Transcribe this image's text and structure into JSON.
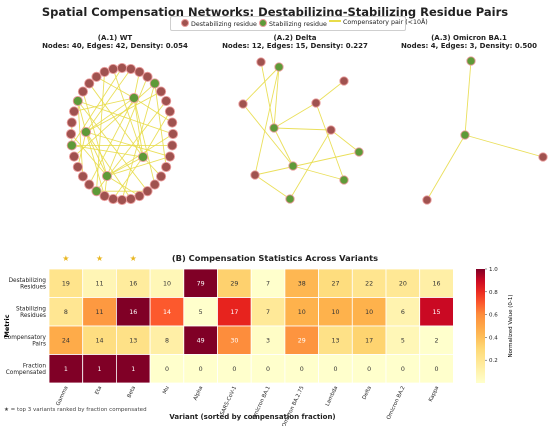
{
  "title": "Spatial Compensation Networks: Destabilizing-Stabilizing Residue Pairs",
  "legend": {
    "destabilizing": "Destabilizing residue",
    "stabilizing": "Stabilizing residue",
    "pair": "Compensatory pair (<10Å)"
  },
  "colors": {
    "destabilizing": "#a0524f",
    "stabilizing": "#5e9a38",
    "edge": "#e8dc4a",
    "node_outline": "#e89a9a"
  },
  "networks": [
    {
      "title": "(A.1) WT",
      "stats": "Nodes: 40, Edges: 42, Density: 0.054",
      "nodes": 40,
      "edges": 42,
      "density": 0.054
    },
    {
      "title": "(A.2) Delta",
      "stats": "Nodes: 12, Edges: 15, Density: 0.227",
      "nodes": 12,
      "edges": 15,
      "density": 0.227
    },
    {
      "title": "(A.3) Omicron BA.1",
      "stats": "Nodes: 4, Edges: 3, Density: 0.500",
      "nodes": 4,
      "edges": 3,
      "density": 0.5
    }
  ],
  "heatmap_title": "(B) Compensation Statistics Across Variants",
  "note": "★ = top 3 variants ranked by fraction compensated",
  "colorbar_label": "Normalized Value (0-1)",
  "chart_data": {
    "type": "heatmap",
    "title": "(B) Compensation Statistics Across Variants",
    "xlabel": "Variant (sorted by compensation fraction)",
    "ylabel": "Metric",
    "x": [
      "Gamma",
      "Eta",
      "Beta",
      "Mu",
      "Alpha",
      "SARS-CoV-1",
      "Omicron BA.1",
      "Omicron BA.2.75",
      "Lambda",
      "Delta",
      "Omicron BA.2",
      "Kappa"
    ],
    "y": [
      "Destabilizing Residues",
      "Stabilizing Residues",
      "Compensatory Pairs",
      "Fraction Compensated"
    ],
    "values": [
      [
        "19",
        "11",
        "16",
        "10",
        "79",
        "29",
        "7",
        "38",
        "27",
        "22",
        "20",
        "16"
      ],
      [
        "8",
        "11",
        "16",
        "14",
        "5",
        "17",
        "7",
        "10",
        "10",
        "10",
        "6",
        "15"
      ],
      [
        "24",
        "14",
        "13",
        "8",
        "49",
        "30",
        "3",
        "29",
        "13",
        "17",
        "5",
        "2"
      ],
      [
        "1",
        "1",
        "1",
        "0",
        "0",
        "0",
        "0",
        "0",
        "0",
        "0",
        "0",
        "0"
      ]
    ],
    "normalized": [
      [
        0.22,
        0.08,
        0.16,
        0.07,
        1.0,
        0.33,
        0.0,
        0.43,
        0.27,
        0.21,
        0.19,
        0.13
      ],
      [
        0.2,
        0.55,
        1.0,
        0.7,
        0.0,
        0.82,
        0.18,
        0.45,
        0.45,
        0.45,
        0.1,
        0.9
      ],
      [
        0.48,
        0.26,
        0.24,
        0.13,
        1.0,
        0.6,
        0.02,
        0.57,
        0.24,
        0.32,
        0.07,
        0.0
      ],
      [
        1.0,
        1.0,
        1.0,
        0.0,
        0.0,
        0.0,
        0.0,
        0.0,
        0.0,
        0.0,
        0.0,
        0.0
      ]
    ],
    "starred": [
      "Gamma",
      "Eta",
      "Beta"
    ],
    "colorbar": {
      "min": 0.0,
      "max": 1.0,
      "ticks": [
        "0.2",
        "0.4",
        "0.6",
        "0.8",
        "1.0"
      ]
    }
  }
}
